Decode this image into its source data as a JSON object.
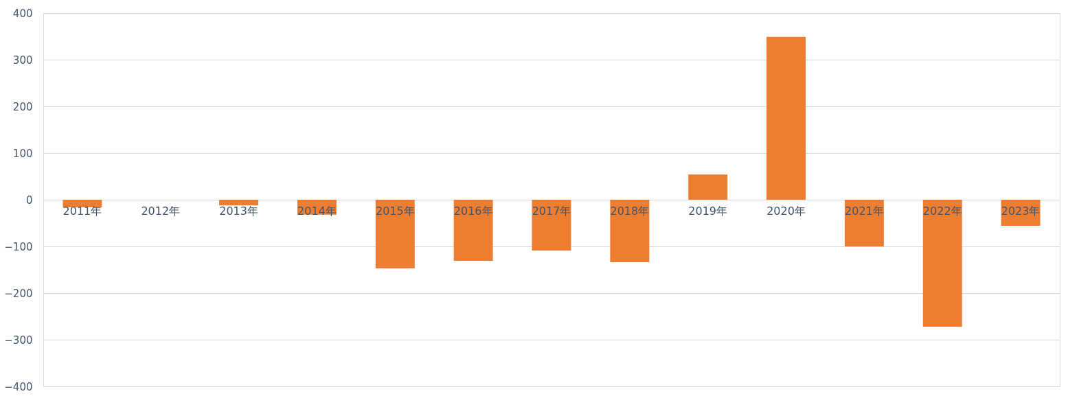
{
  "chart_data": {
    "type": "bar",
    "categories": [
      "2011年",
      "2012年",
      "2013年",
      "2014年",
      "2015年",
      "2016年",
      "2017年",
      "2018年",
      "2019年",
      "2020年",
      "2021年",
      "2022年",
      "2023年"
    ],
    "values": [
      -16,
      0,
      -12,
      -32,
      -147,
      -131,
      -109,
      -134,
      54,
      349,
      -100,
      -272,
      -56
    ],
    "color": "#ed7d31",
    "ylim": [
      -400,
      400
    ],
    "yticks": [
      -400,
      -300,
      -200,
      -100,
      0,
      100,
      200,
      300,
      400
    ],
    "grid": "y"
  }
}
